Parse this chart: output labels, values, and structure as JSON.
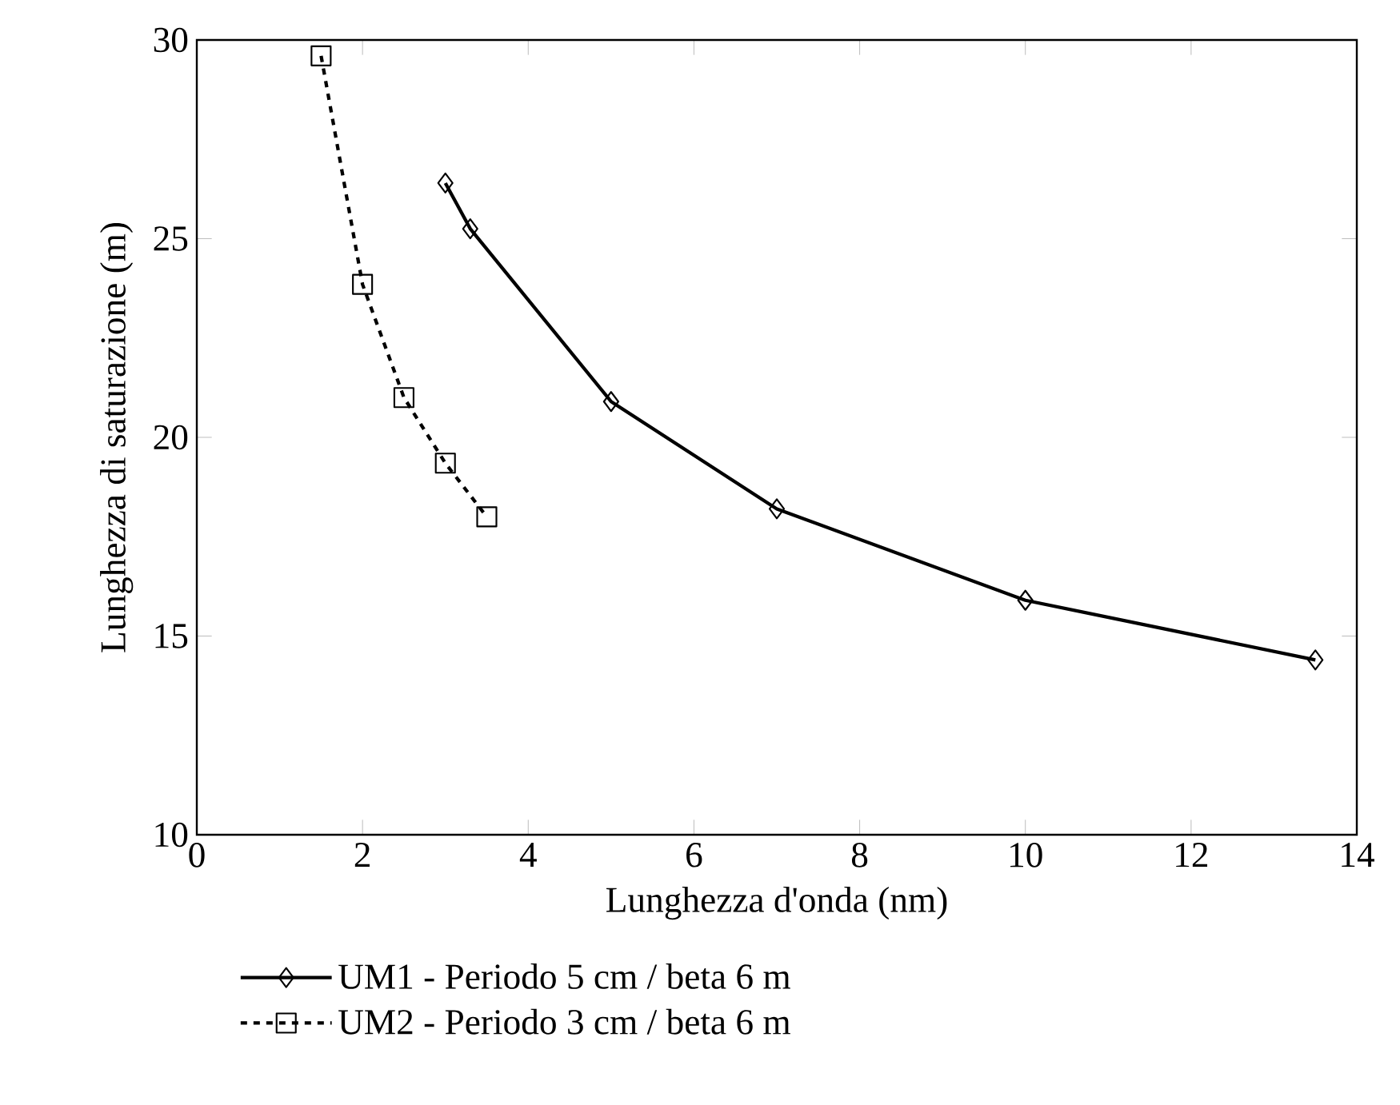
{
  "chart_data": {
    "type": "line",
    "xlabel": "Lunghezza d'onda (nm)",
    "ylabel": "Lunghezza di saturazione (m)",
    "xlim": [
      0,
      14
    ],
    "ylim": [
      10,
      30
    ],
    "xticks": [
      0,
      2,
      4,
      6,
      8,
      10,
      12,
      14
    ],
    "yticks": [
      10,
      15,
      20,
      25,
      30
    ],
    "legend": "bottom",
    "series": [
      {
        "name": "UM1 - Periodo 5 cm / beta 6 m",
        "color": "#000000",
        "marker": "diamond",
        "line_style": "solid",
        "x": [
          3,
          3.3,
          5,
          7,
          10,
          13.5
        ],
        "values": [
          26.4,
          25.25,
          20.9,
          18.2,
          15.9,
          14.4
        ]
      },
      {
        "name": "UM2 - Periodo 3 cm / beta 6 m",
        "color": "#000000",
        "marker": "square",
        "line_style": "dashed",
        "x": [
          1.5,
          2,
          2.5,
          3,
          3.5
        ],
        "values": [
          29.6,
          23.85,
          21.0,
          19.35,
          18.0
        ]
      }
    ]
  }
}
